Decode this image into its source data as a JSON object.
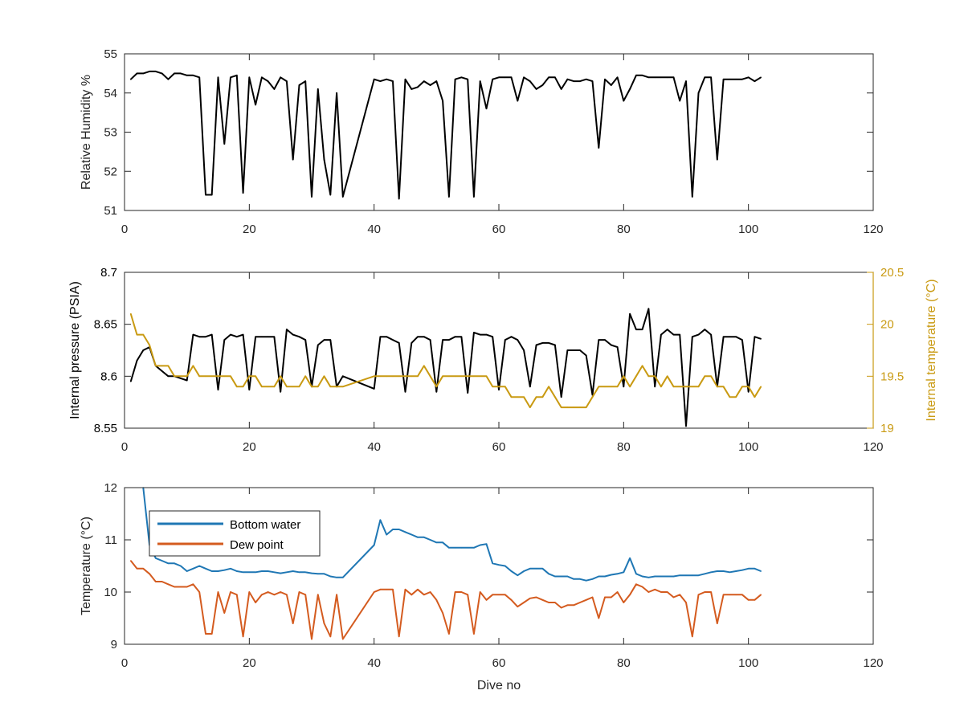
{
  "figure": {
    "xlabel": "Dive no"
  },
  "chart_data": [
    {
      "type": "line",
      "ylabel": "Relative Humidity %",
      "xlim": [
        0,
        120
      ],
      "ylim": [
        51,
        55
      ],
      "xticks": [
        0,
        20,
        40,
        60,
        80,
        100,
        120
      ],
      "yticks": [
        51,
        52,
        53,
        54,
        55
      ],
      "grid": false,
      "series": [
        {
          "color": "#000000",
          "x": [
            1,
            2,
            3,
            4,
            5,
            6,
            7,
            8,
            9,
            10,
            11,
            12,
            13,
            14,
            15,
            16,
            17,
            18,
            19,
            20,
            21,
            22,
            23,
            24,
            25,
            26,
            27,
            28,
            29,
            30,
            31,
            32,
            33,
            34,
            35,
            40,
            41,
            42,
            43,
            44,
            45,
            46,
            47,
            48,
            49,
            50,
            51,
            52,
            53,
            54,
            55,
            56,
            57,
            58,
            59,
            60,
            61,
            62,
            63,
            64,
            65,
            66,
            67,
            68,
            69,
            70,
            71,
            72,
            73,
            74,
            75,
            76,
            77,
            78,
            79,
            80,
            81,
            82,
            83,
            84,
            85,
            86,
            87,
            88,
            89,
            90,
            91,
            92,
            93,
            94,
            95,
            96,
            97,
            98,
            99,
            100,
            101,
            102
          ],
          "values": [
            54.35,
            54.5,
            54.5,
            54.55,
            54.55,
            54.5,
            54.35,
            54.5,
            54.5,
            54.45,
            54.45,
            54.4,
            51.4,
            51.4,
            54.4,
            52.7,
            54.4,
            54.45,
            51.45,
            54.4,
            53.7,
            54.4,
            54.3,
            54.1,
            54.4,
            54.3,
            52.3,
            54.2,
            54.3,
            51.35,
            54.1,
            52.3,
            51.4,
            54.0,
            51.35,
            54.35,
            54.3,
            54.35,
            54.3,
            51.3,
            54.35,
            54.1,
            54.15,
            54.3,
            54.2,
            54.3,
            53.8,
            51.35,
            54.35,
            54.4,
            54.35,
            51.35,
            54.3,
            53.6,
            54.35,
            54.4,
            54.4,
            54.4,
            53.8,
            54.4,
            54.3,
            54.1,
            54.2,
            54.4,
            54.4,
            54.1,
            54.35,
            54.3,
            54.3,
            54.35,
            54.3,
            52.6,
            54.35,
            54.2,
            54.4,
            53.8,
            54.1,
            54.45,
            54.45,
            54.4,
            54.4,
            54.4,
            54.4,
            54.4,
            53.8,
            54.3,
            51.35,
            54.0,
            54.4,
            54.4,
            52.3,
            54.35,
            54.35,
            54.35,
            54.35,
            54.4,
            54.3,
            54.4
          ]
        }
      ]
    },
    {
      "type": "line",
      "ylabel": "Internal pressure (PSIA)",
      "ylabel_right": "Internal temperature (°C)",
      "xlim": [
        0,
        120
      ],
      "ylim": [
        8.55,
        8.7
      ],
      "ylim_right": [
        19,
        20.5
      ],
      "xticks": [
        0,
        20,
        40,
        60,
        80,
        100,
        120
      ],
      "yticks": [
        8.55,
        8.6,
        8.65,
        8.7
      ],
      "yticks_right": [
        19,
        19.5,
        20,
        20.5
      ],
      "right_axis_color": "#c99a12",
      "grid": false,
      "series": [
        {
          "axis": "left",
          "color": "#000000",
          "x": [
            1,
            2,
            3,
            4,
            5,
            6,
            7,
            8,
            9,
            10,
            11,
            12,
            13,
            14,
            15,
            16,
            17,
            18,
            19,
            20,
            21,
            22,
            23,
            24,
            25,
            26,
            27,
            28,
            29,
            30,
            31,
            32,
            33,
            34,
            35,
            40,
            41,
            42,
            43,
            44,
            45,
            46,
            47,
            48,
            49,
            50,
            51,
            52,
            53,
            54,
            55,
            56,
            57,
            58,
            59,
            60,
            61,
            62,
            63,
            64,
            65,
            66,
            67,
            68,
            69,
            70,
            71,
            72,
            73,
            74,
            75,
            76,
            77,
            78,
            79,
            80,
            81,
            82,
            83,
            84,
            85,
            86,
            87,
            88,
            89,
            90,
            91,
            92,
            93,
            94,
            95,
            96,
            97,
            98,
            99,
            100,
            101,
            102
          ],
          "values": [
            8.595,
            8.615,
            8.625,
            8.628,
            8.61,
            8.605,
            8.6,
            8.6,
            8.598,
            8.596,
            8.64,
            8.638,
            8.638,
            8.64,
            8.587,
            8.635,
            8.64,
            8.638,
            8.64,
            8.587,
            8.638,
            8.638,
            8.638,
            8.638,
            8.585,
            8.645,
            8.64,
            8.638,
            8.635,
            8.59,
            8.63,
            8.635,
            8.635,
            8.59,
            8.6,
            8.588,
            8.638,
            8.638,
            8.635,
            8.632,
            8.585,
            8.632,
            8.638,
            8.638,
            8.635,
            8.585,
            8.635,
            8.635,
            8.638,
            8.638,
            8.584,
            8.642,
            8.64,
            8.64,
            8.638,
            8.587,
            8.635,
            8.638,
            8.635,
            8.625,
            8.59,
            8.63,
            8.632,
            8.632,
            8.63,
            8.58,
            8.625,
            8.625,
            8.625,
            8.62,
            8.582,
            8.635,
            8.635,
            8.63,
            8.628,
            8.59,
            8.66,
            8.645,
            8.645,
            8.665,
            8.59,
            8.64,
            8.645,
            8.64,
            8.64,
            8.552,
            8.638,
            8.64,
            8.645,
            8.64,
            8.59,
            8.638,
            8.638,
            8.638,
            8.635,
            8.585,
            8.638,
            8.636
          ]
        },
        {
          "axis": "right",
          "color": "#c99a12",
          "x": [
            1,
            2,
            3,
            4,
            5,
            6,
            7,
            8,
            9,
            10,
            11,
            12,
            13,
            14,
            15,
            16,
            17,
            18,
            19,
            20,
            21,
            22,
            23,
            24,
            25,
            26,
            27,
            28,
            29,
            30,
            31,
            32,
            33,
            34,
            35,
            40,
            41,
            42,
            43,
            44,
            45,
            46,
            47,
            48,
            49,
            50,
            51,
            52,
            53,
            54,
            55,
            56,
            57,
            58,
            59,
            60,
            61,
            62,
            63,
            64,
            65,
            66,
            67,
            68,
            69,
            70,
            71,
            72,
            73,
            74,
            75,
            76,
            77,
            78,
            79,
            80,
            81,
            82,
            83,
            84,
            85,
            86,
            87,
            88,
            89,
            90,
            91,
            92,
            93,
            94,
            95,
            96,
            97,
            98,
            99,
            100,
            101,
            102
          ],
          "values": [
            20.1,
            19.9,
            19.9,
            19.8,
            19.6,
            19.6,
            19.6,
            19.5,
            19.5,
            19.5,
            19.6,
            19.5,
            19.5,
            19.5,
            19.5,
            19.5,
            19.5,
            19.4,
            19.4,
            19.5,
            19.5,
            19.4,
            19.4,
            19.4,
            19.5,
            19.4,
            19.4,
            19.4,
            19.5,
            19.4,
            19.4,
            19.5,
            19.4,
            19.4,
            19.4,
            19.5,
            19.5,
            19.5,
            19.5,
            19.5,
            19.5,
            19.5,
            19.5,
            19.6,
            19.5,
            19.4,
            19.5,
            19.5,
            19.5,
            19.5,
            19.5,
            19.5,
            19.5,
            19.5,
            19.4,
            19.4,
            19.4,
            19.3,
            19.3,
            19.3,
            19.2,
            19.3,
            19.3,
            19.4,
            19.3,
            19.2,
            19.2,
            19.2,
            19.2,
            19.2,
            19.3,
            19.4,
            19.4,
            19.4,
            19.4,
            19.5,
            19.4,
            19.5,
            19.6,
            19.5,
            19.5,
            19.4,
            19.5,
            19.4,
            19.4,
            19.4,
            19.4,
            19.4,
            19.5,
            19.5,
            19.4,
            19.4,
            19.3,
            19.3,
            19.4,
            19.4,
            19.3,
            19.4
          ]
        }
      ]
    },
    {
      "type": "line",
      "xlabel": "Dive no",
      "ylabel": "Temperature (°C)",
      "xlim": [
        0,
        120
      ],
      "ylim": [
        9,
        12
      ],
      "xticks": [
        0,
        20,
        40,
        60,
        80,
        100,
        120
      ],
      "yticks": [
        9,
        10,
        11,
        12
      ],
      "grid": false,
      "legend_position": "top-left",
      "series": [
        {
          "name": "Bottom water",
          "color": "#1f77b4",
          "x": [
            3,
            4,
            5,
            6,
            7,
            8,
            9,
            10,
            11,
            12,
            13,
            14,
            15,
            16,
            17,
            18,
            19,
            20,
            21,
            22,
            23,
            24,
            25,
            26,
            27,
            28,
            29,
            30,
            31,
            32,
            33,
            34,
            35,
            40,
            41,
            42,
            43,
            44,
            45,
            46,
            47,
            48,
            49,
            50,
            51,
            52,
            53,
            54,
            55,
            56,
            57,
            58,
            59,
            60,
            61,
            62,
            63,
            64,
            65,
            66,
            67,
            68,
            69,
            70,
            71,
            72,
            73,
            74,
            75,
            76,
            77,
            78,
            79,
            80,
            81,
            82,
            83,
            84,
            85,
            86,
            87,
            88,
            89,
            90,
            91,
            92,
            93,
            94,
            95,
            96,
            97,
            98,
            99,
            100,
            101,
            102
          ],
          "values": [
            12.0,
            10.9,
            10.65,
            10.6,
            10.55,
            10.55,
            10.5,
            10.4,
            10.45,
            10.5,
            10.45,
            10.4,
            10.4,
            10.42,
            10.45,
            10.4,
            10.38,
            10.38,
            10.38,
            10.4,
            10.4,
            10.38,
            10.36,
            10.38,
            10.4,
            10.38,
            10.38,
            10.36,
            10.35,
            10.35,
            10.3,
            10.28,
            10.28,
            10.9,
            11.38,
            11.1,
            11.2,
            11.2,
            11.15,
            11.1,
            11.05,
            11.05,
            11.0,
            10.95,
            10.95,
            10.85,
            10.85,
            10.85,
            10.85,
            10.85,
            10.9,
            10.92,
            10.55,
            10.52,
            10.5,
            10.4,
            10.32,
            10.4,
            10.45,
            10.45,
            10.45,
            10.35,
            10.3,
            10.3,
            10.3,
            10.25,
            10.25,
            10.22,
            10.25,
            10.3,
            10.3,
            10.33,
            10.35,
            10.38,
            10.65,
            10.35,
            10.3,
            10.28,
            10.3,
            10.3,
            10.3,
            10.3,
            10.32,
            10.32,
            10.32,
            10.32,
            10.35,
            10.38,
            10.4,
            10.4,
            10.38,
            10.4,
            10.42,
            10.45,
            10.45,
            10.4
          ]
        },
        {
          "name": "Dew point",
          "color": "#d45b1f",
          "x": [
            1,
            2,
            3,
            4,
            5,
            6,
            7,
            8,
            9,
            10,
            11,
            12,
            13,
            14,
            15,
            16,
            17,
            18,
            19,
            20,
            21,
            22,
            23,
            24,
            25,
            26,
            27,
            28,
            29,
            30,
            31,
            32,
            33,
            34,
            35,
            40,
            41,
            42,
            43,
            44,
            45,
            46,
            47,
            48,
            49,
            50,
            51,
            52,
            53,
            54,
            55,
            56,
            57,
            58,
            59,
            60,
            61,
            62,
            63,
            64,
            65,
            66,
            67,
            68,
            69,
            70,
            71,
            72,
            73,
            74,
            75,
            76,
            77,
            78,
            79,
            80,
            81,
            82,
            83,
            84,
            85,
            86,
            87,
            88,
            89,
            90,
            91,
            92,
            93,
            94,
            95,
            96,
            97,
            98,
            99,
            100,
            101,
            102
          ],
          "values": [
            10.6,
            10.45,
            10.45,
            10.35,
            10.2,
            10.2,
            10.15,
            10.1,
            10.1,
            10.1,
            10.15,
            10.0,
            9.2,
            9.2,
            10.0,
            9.6,
            10.0,
            9.95,
            9.15,
            10.0,
            9.8,
            9.95,
            10.0,
            9.95,
            10.0,
            9.95,
            9.4,
            10.0,
            9.95,
            9.1,
            9.95,
            9.4,
            9.15,
            9.95,
            9.1,
            10.0,
            10.05,
            10.05,
            10.05,
            9.15,
            10.05,
            9.95,
            10.05,
            9.95,
            10.0,
            9.85,
            9.6,
            9.2,
            10.0,
            10.0,
            9.95,
            9.2,
            10.0,
            9.85,
            9.95,
            9.95,
            9.95,
            9.85,
            9.72,
            9.8,
            9.88,
            9.9,
            9.85,
            9.8,
            9.8,
            9.7,
            9.75,
            9.75,
            9.8,
            9.85,
            9.9,
            9.5,
            9.9,
            9.9,
            10.0,
            9.8,
            9.95,
            10.15,
            10.1,
            10.0,
            10.05,
            10.0,
            10.0,
            9.9,
            9.95,
            9.8,
            9.15,
            9.95,
            10.0,
            10.0,
            9.4,
            9.95,
            9.95,
            9.95,
            9.95,
            9.85,
            9.85,
            9.95
          ]
        }
      ]
    }
  ]
}
